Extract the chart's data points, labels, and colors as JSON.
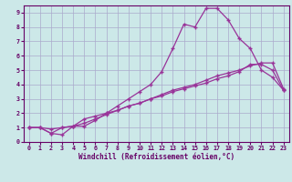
{
  "xlabel": "Windchill (Refroidissement éolien,°C)",
  "bg_color": "#cce8e8",
  "grid_color": "#aaaacc",
  "line_color": "#993399",
  "xlim": [
    -0.5,
    23.5
  ],
  "ylim": [
    0,
    9.5
  ],
  "xticks": [
    0,
    1,
    2,
    3,
    4,
    5,
    6,
    7,
    8,
    9,
    10,
    11,
    12,
    13,
    14,
    15,
    16,
    17,
    18,
    19,
    20,
    21,
    22,
    23
  ],
  "yticks": [
    0,
    1,
    2,
    3,
    4,
    5,
    6,
    7,
    8,
    9
  ],
  "series1_x": [
    0,
    1,
    2,
    3,
    4,
    5,
    6,
    7,
    8,
    9,
    10,
    11,
    12,
    13,
    14,
    15,
    16,
    17,
    18,
    19,
    20,
    21,
    22,
    23
  ],
  "series1_y": [
    1.0,
    1.0,
    0.6,
    0.5,
    1.1,
    1.1,
    1.5,
    2.0,
    2.5,
    3.0,
    3.5,
    4.0,
    4.9,
    6.5,
    8.2,
    8.0,
    9.3,
    9.3,
    8.5,
    7.2,
    6.5,
    5.0,
    4.5,
    3.6
  ],
  "series2_x": [
    0,
    1,
    2,
    3,
    4,
    5,
    6,
    7,
    8,
    9,
    10,
    11,
    12,
    13,
    14,
    15,
    16,
    17,
    18,
    19,
    20,
    21,
    22,
    23
  ],
  "series2_y": [
    1.0,
    1.0,
    0.9,
    1.0,
    1.1,
    1.3,
    1.6,
    1.9,
    2.2,
    2.5,
    2.7,
    3.0,
    3.3,
    3.6,
    3.8,
    4.0,
    4.3,
    4.6,
    4.8,
    5.0,
    5.3,
    5.5,
    5.5,
    3.7
  ],
  "series3_x": [
    0,
    1,
    2,
    3,
    4,
    5,
    6,
    7,
    8,
    9,
    10,
    11,
    12,
    13,
    14,
    15,
    16,
    17,
    18,
    19,
    20,
    21,
    22,
    23
  ],
  "series3_y": [
    1.0,
    1.0,
    0.6,
    1.0,
    1.1,
    1.6,
    1.8,
    2.0,
    2.2,
    2.5,
    2.7,
    3.0,
    3.2,
    3.5,
    3.7,
    3.9,
    4.1,
    4.4,
    4.6,
    4.9,
    5.4,
    5.4,
    5.0,
    3.6
  ]
}
